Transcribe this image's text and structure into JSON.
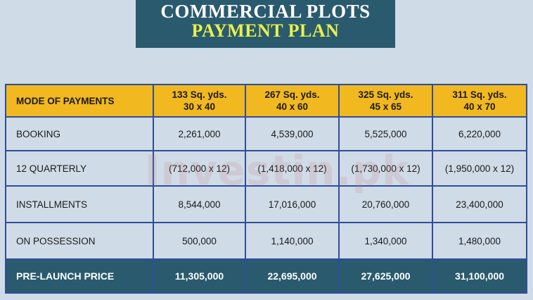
{
  "banner": {
    "line1": "COMMERCIAL PLOTS",
    "line2": "PAYMENT PLAN"
  },
  "watermark": "Investin.pk",
  "table": {
    "header": {
      "mode": "MODE OF PAYMENTS",
      "plots": [
        {
          "size": "133 Sq. yds.",
          "dims": "30 x 40"
        },
        {
          "size": "267 Sq. yds.",
          "dims": "40 x 60"
        },
        {
          "size": "325 Sq. yds.",
          "dims": "45 x 65"
        },
        {
          "size": "311 Sq. yds.",
          "dims": "40 x 70"
        }
      ]
    },
    "booking": {
      "label": "BOOKING",
      "values": [
        "2,261,000",
        "4,539,000",
        "5,525,000",
        "6,220,000"
      ]
    },
    "quarterly": {
      "label": "12 QUARTERLY",
      "values": [
        "(712,000 x 12)",
        "(1,418,000 x 12)",
        "(1,730,000 x 12)",
        "(1,950,000 x 12)"
      ]
    },
    "installments": {
      "label": "INSTALLMENTS",
      "values": [
        "8,544,000",
        "17,016,000",
        "20,760,000",
        "23,400,000"
      ]
    },
    "possession": {
      "label": "ON POSSESSION",
      "values": [
        "500,000",
        "1,140,000",
        "1,340,000",
        "1,480,000"
      ]
    },
    "total": {
      "label": "PRE-LAUNCH PRICE",
      "values": [
        "11,305,000",
        "22,695,000",
        "27,625,000",
        "31,100,000"
      ]
    }
  }
}
